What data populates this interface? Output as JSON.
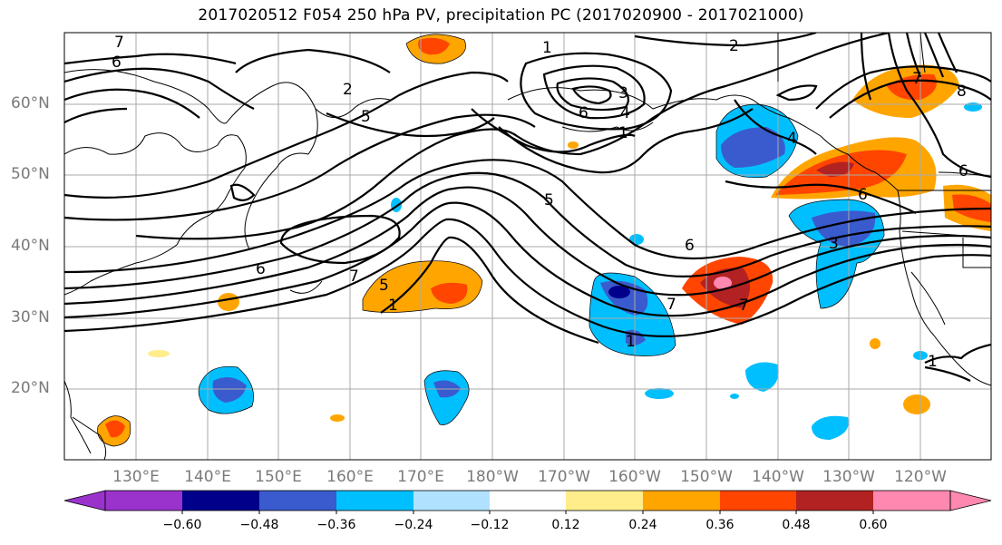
{
  "title": "2017020512 F054 250 hPa PV, precipitation PC (2017020900 - 2017021000)",
  "lat_labels": [
    "60°N",
    "50°N",
    "40°N",
    "30°N",
    "20°N"
  ],
  "lon_labels": [
    "130°E",
    "140°E",
    "150°E",
    "160°E",
    "170°E",
    "180°W",
    "170°W",
    "160°W",
    "150°W",
    "140°W",
    "130°W",
    "120°W"
  ],
  "colorbar": {
    "ticks": [
      "−0.60",
      "−0.48",
      "−0.36",
      "−0.24",
      "−0.12",
      "0.12",
      "0.24",
      "0.36",
      "0.48",
      "0.60"
    ],
    "colors": [
      "#9933cc",
      "#00008b",
      "#3a5bcd",
      "#00bfff",
      "#b0e2ff",
      "#ffffff",
      "#ffec8b",
      "#ffa500",
      "#ff4500",
      "#b22222",
      "#ff88b0"
    ]
  },
  "contour_labels": [
    "7",
    "6",
    "2",
    "1",
    "5",
    "6",
    "2",
    "1",
    "7",
    "6",
    "5",
    "7",
    "5",
    "1",
    "7",
    "1",
    "3",
    "4",
    "6",
    "6",
    "8",
    "7",
    "6",
    "1",
    "3",
    "4"
  ]
}
